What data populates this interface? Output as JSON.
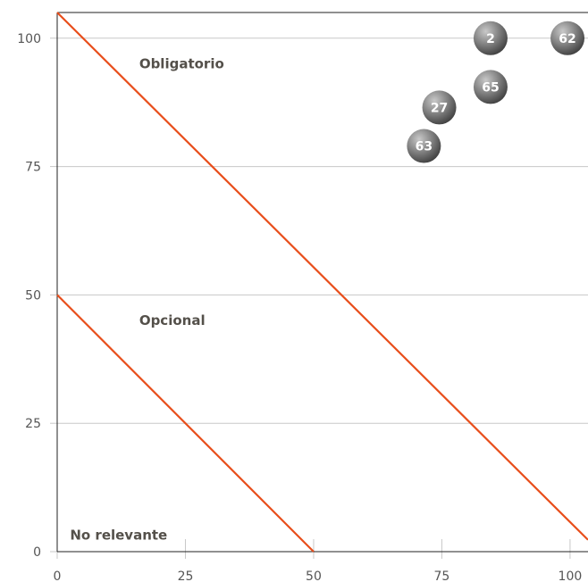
{
  "chart_data": {
    "type": "scatter",
    "title": "",
    "xlabel": "",
    "ylabel": "",
    "xlim": [
      0,
      103.5
    ],
    "ylim": [
      0,
      105
    ],
    "x_ticks": [
      0,
      25,
      50,
      75,
      100
    ],
    "y_ticks": [
      0,
      25,
      50,
      75,
      100
    ],
    "grid": "horizontal",
    "points": [
      {
        "label": "2",
        "x": 84.5,
        "y": 100
      },
      {
        "label": "62",
        "x": 99.5,
        "y": 100
      },
      {
        "label": "65",
        "x": 84.5,
        "y": 90.5
      },
      {
        "label": "27",
        "x": 74.5,
        "y": 86.5
      },
      {
        "label": "63",
        "x": 71.5,
        "y": 79
      }
    ],
    "threshold_lines": [
      {
        "name": "upper",
        "from": [
          0,
          105
        ],
        "to": [
          103.5,
          2.3
        ]
      },
      {
        "name": "lower",
        "from": [
          0,
          50
        ],
        "to": [
          50,
          0
        ]
      }
    ],
    "zones": [
      {
        "text": "Obligatorio",
        "x": 16,
        "y": 95
      },
      {
        "text": "Opcional",
        "x": 16,
        "y": 45
      },
      {
        "text": "No relevante",
        "x": 2.5,
        "y": 3.2
      }
    ],
    "colors": {
      "threshold": "#e84e1b",
      "grid": "#c8c8c8",
      "axis": "#222222",
      "bubble_light": "#c9c9c9",
      "bubble_dark": "#3e3e3e"
    }
  }
}
